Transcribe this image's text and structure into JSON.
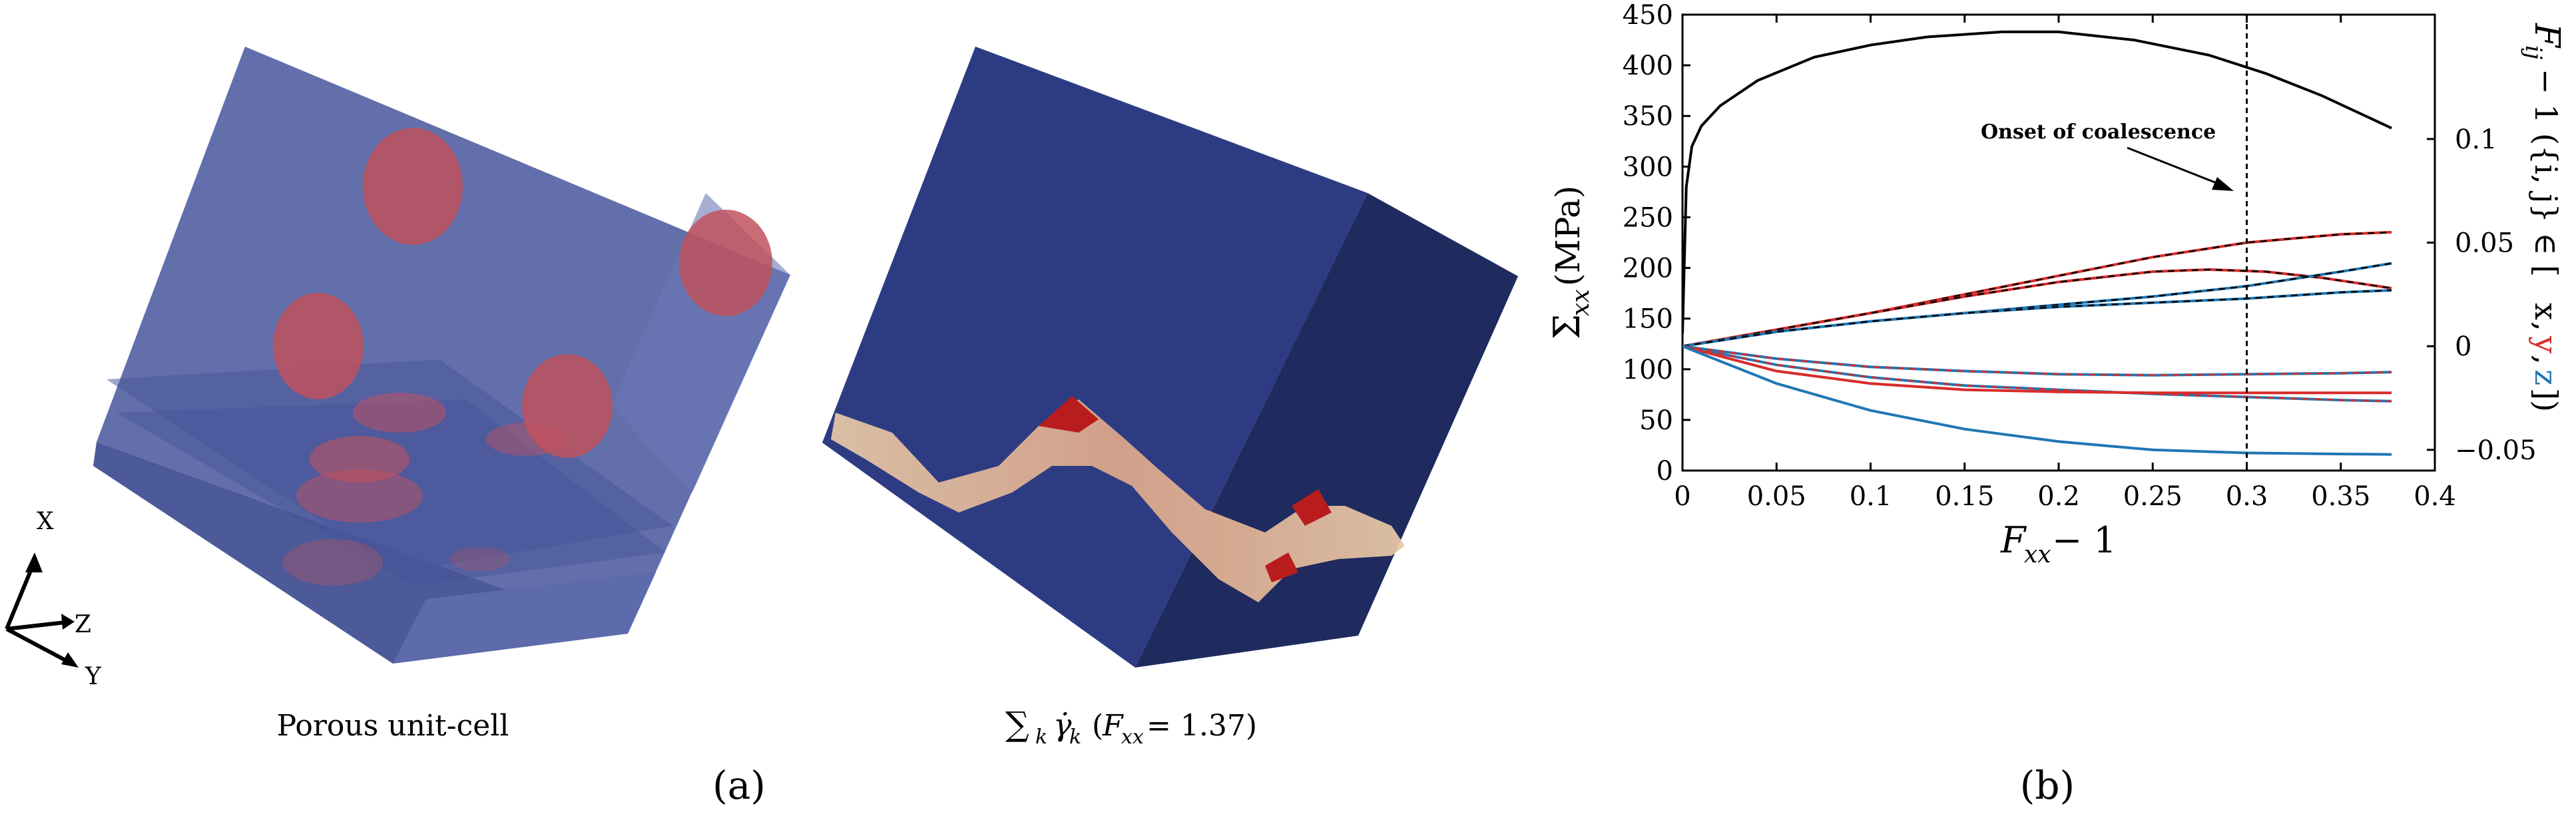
{
  "panel_a": {
    "caption": "(a)",
    "left_label": "Porous unit-cell",
    "right_label_sum": "∑",
    "right_label_k": "k",
    "right_label_gamma": "γ̇",
    "right_label_gk": "k",
    "right_label_paren": "(",
    "right_label_F": "F",
    "right_label_Fsub": "xx",
    "right_label_value": " = 1.37)",
    "axes": {
      "x": "X",
      "z": "Z",
      "y": "Y"
    },
    "colors": {
      "cube_face": "#5563a3",
      "void": "#c0525e",
      "field_bg": "#2d3c82",
      "band": "#e8c9a8",
      "band_hot": "#b81c1c"
    }
  },
  "panel_b": {
    "caption": "(b)",
    "annotation": "Onset of coalescence",
    "xlabel_main": "F",
    "xlabel_sub": "xx",
    "xlabel_tail": " − 1",
    "ylabel_main": "Σ",
    "ylabel_sub": "xx",
    "ylabel_unit": " (MPa)",
    "y2label_main": "F",
    "y2label_sub": "ij",
    "y2label_mid": " − 1 ({i, j} ∈ [",
    "y2label_x": "x",
    "y2label_c1": ", ",
    "y2label_y": "y",
    "y2label_c2": ", ",
    "y2label_z": "z",
    "y2label_end": "])",
    "colors": {
      "red": "#d92b2b",
      "blue": "#1f77b4",
      "black": "#000000"
    }
  },
  "chart_data": {
    "type": "line",
    "xlim": [
      0,
      0.4
    ],
    "ylim": [
      0,
      450
    ],
    "y2lim": [
      -0.06,
      0.16
    ],
    "xticks": [
      "0",
      "0.05",
      "0.1",
      "0.15",
      "0.2",
      "0.25",
      "0.3",
      "0.35",
      "0.4"
    ],
    "yticks": [
      "0",
      "50",
      "100",
      "150",
      "200",
      "250",
      "300",
      "350",
      "400",
      "450"
    ],
    "y2ticks": [
      "−0.05",
      "0",
      "0.05",
      "0.1"
    ],
    "vline_x": 0.3,
    "series": [
      {
        "axis": "left",
        "color": "black",
        "style": "solid",
        "x": [
          0,
          0.002,
          0.005,
          0.01,
          0.02,
          0.04,
          0.07,
          0.1,
          0.13,
          0.17,
          0.2,
          0.24,
          0.28,
          0.31,
          0.34,
          0.377
        ],
        "y": [
          135,
          280,
          320,
          340,
          360,
          385,
          408,
          420,
          428,
          433,
          433,
          425,
          410,
          392,
          370,
          338
        ]
      },
      {
        "axis": "right",
        "color": "red",
        "style": "red-black-dashed",
        "x": [
          0,
          0.05,
          0.1,
          0.15,
          0.2,
          0.25,
          0.3,
          0.35,
          0.377
        ],
        "y": [
          0,
          0.008,
          0.016,
          0.025,
          0.034,
          0.043,
          0.05,
          0.054,
          0.055
        ]
      },
      {
        "axis": "right",
        "color": "red",
        "style": "red-black-dashed",
        "x": [
          0,
          0.05,
          0.1,
          0.15,
          0.2,
          0.25,
          0.28,
          0.31,
          0.34,
          0.377
        ],
        "y": [
          0,
          0.008,
          0.016,
          0.024,
          0.031,
          0.036,
          0.037,
          0.036,
          0.033,
          0.028
        ]
      },
      {
        "axis": "right",
        "color": "blue",
        "style": "blue-black-dashed",
        "x": [
          0,
          0.05,
          0.1,
          0.15,
          0.2,
          0.25,
          0.3,
          0.35,
          0.377
        ],
        "y": [
          0,
          0.007,
          0.012,
          0.016,
          0.02,
          0.024,
          0.029,
          0.036,
          0.04
        ]
      },
      {
        "axis": "right",
        "color": "blue",
        "style": "blue-black-dashed",
        "x": [
          0,
          0.05,
          0.1,
          0.15,
          0.2,
          0.25,
          0.3,
          0.35,
          0.377
        ],
        "y": [
          0,
          0.007,
          0.012,
          0.016,
          0.019,
          0.021,
          0.023,
          0.026,
          0.027
        ]
      },
      {
        "axis": "right",
        "color": "blue",
        "style": "blue-red-dashed",
        "x": [
          0,
          0.05,
          0.1,
          0.15,
          0.2,
          0.25,
          0.3,
          0.35,
          0.377
        ],
        "y": [
          0,
          -0.006,
          -0.01,
          -0.012,
          -0.0135,
          -0.014,
          -0.0135,
          -0.013,
          -0.0125
        ]
      },
      {
        "axis": "right",
        "color": "blue",
        "style": "blue-red-dashed",
        "x": [
          0,
          0.05,
          0.1,
          0.15,
          0.2,
          0.25,
          0.3,
          0.35,
          0.377
        ],
        "y": [
          0,
          -0.009,
          -0.015,
          -0.019,
          -0.021,
          -0.023,
          -0.0245,
          -0.026,
          -0.0265
        ]
      },
      {
        "axis": "right",
        "color": "red",
        "style": "solid",
        "x": [
          0,
          0.05,
          0.1,
          0.15,
          0.2,
          0.25,
          0.3,
          0.35,
          0.377
        ],
        "y": [
          0,
          -0.012,
          -0.018,
          -0.021,
          -0.022,
          -0.0225,
          -0.0225,
          -0.0225,
          -0.0225
        ]
      },
      {
        "axis": "right",
        "color": "blue",
        "style": "solid",
        "x": [
          0,
          0.05,
          0.1,
          0.15,
          0.2,
          0.25,
          0.3,
          0.35,
          0.377
        ],
        "y": [
          0,
          -0.018,
          -0.031,
          -0.04,
          -0.046,
          -0.05,
          -0.0515,
          -0.052,
          -0.0522
        ]
      }
    ]
  }
}
